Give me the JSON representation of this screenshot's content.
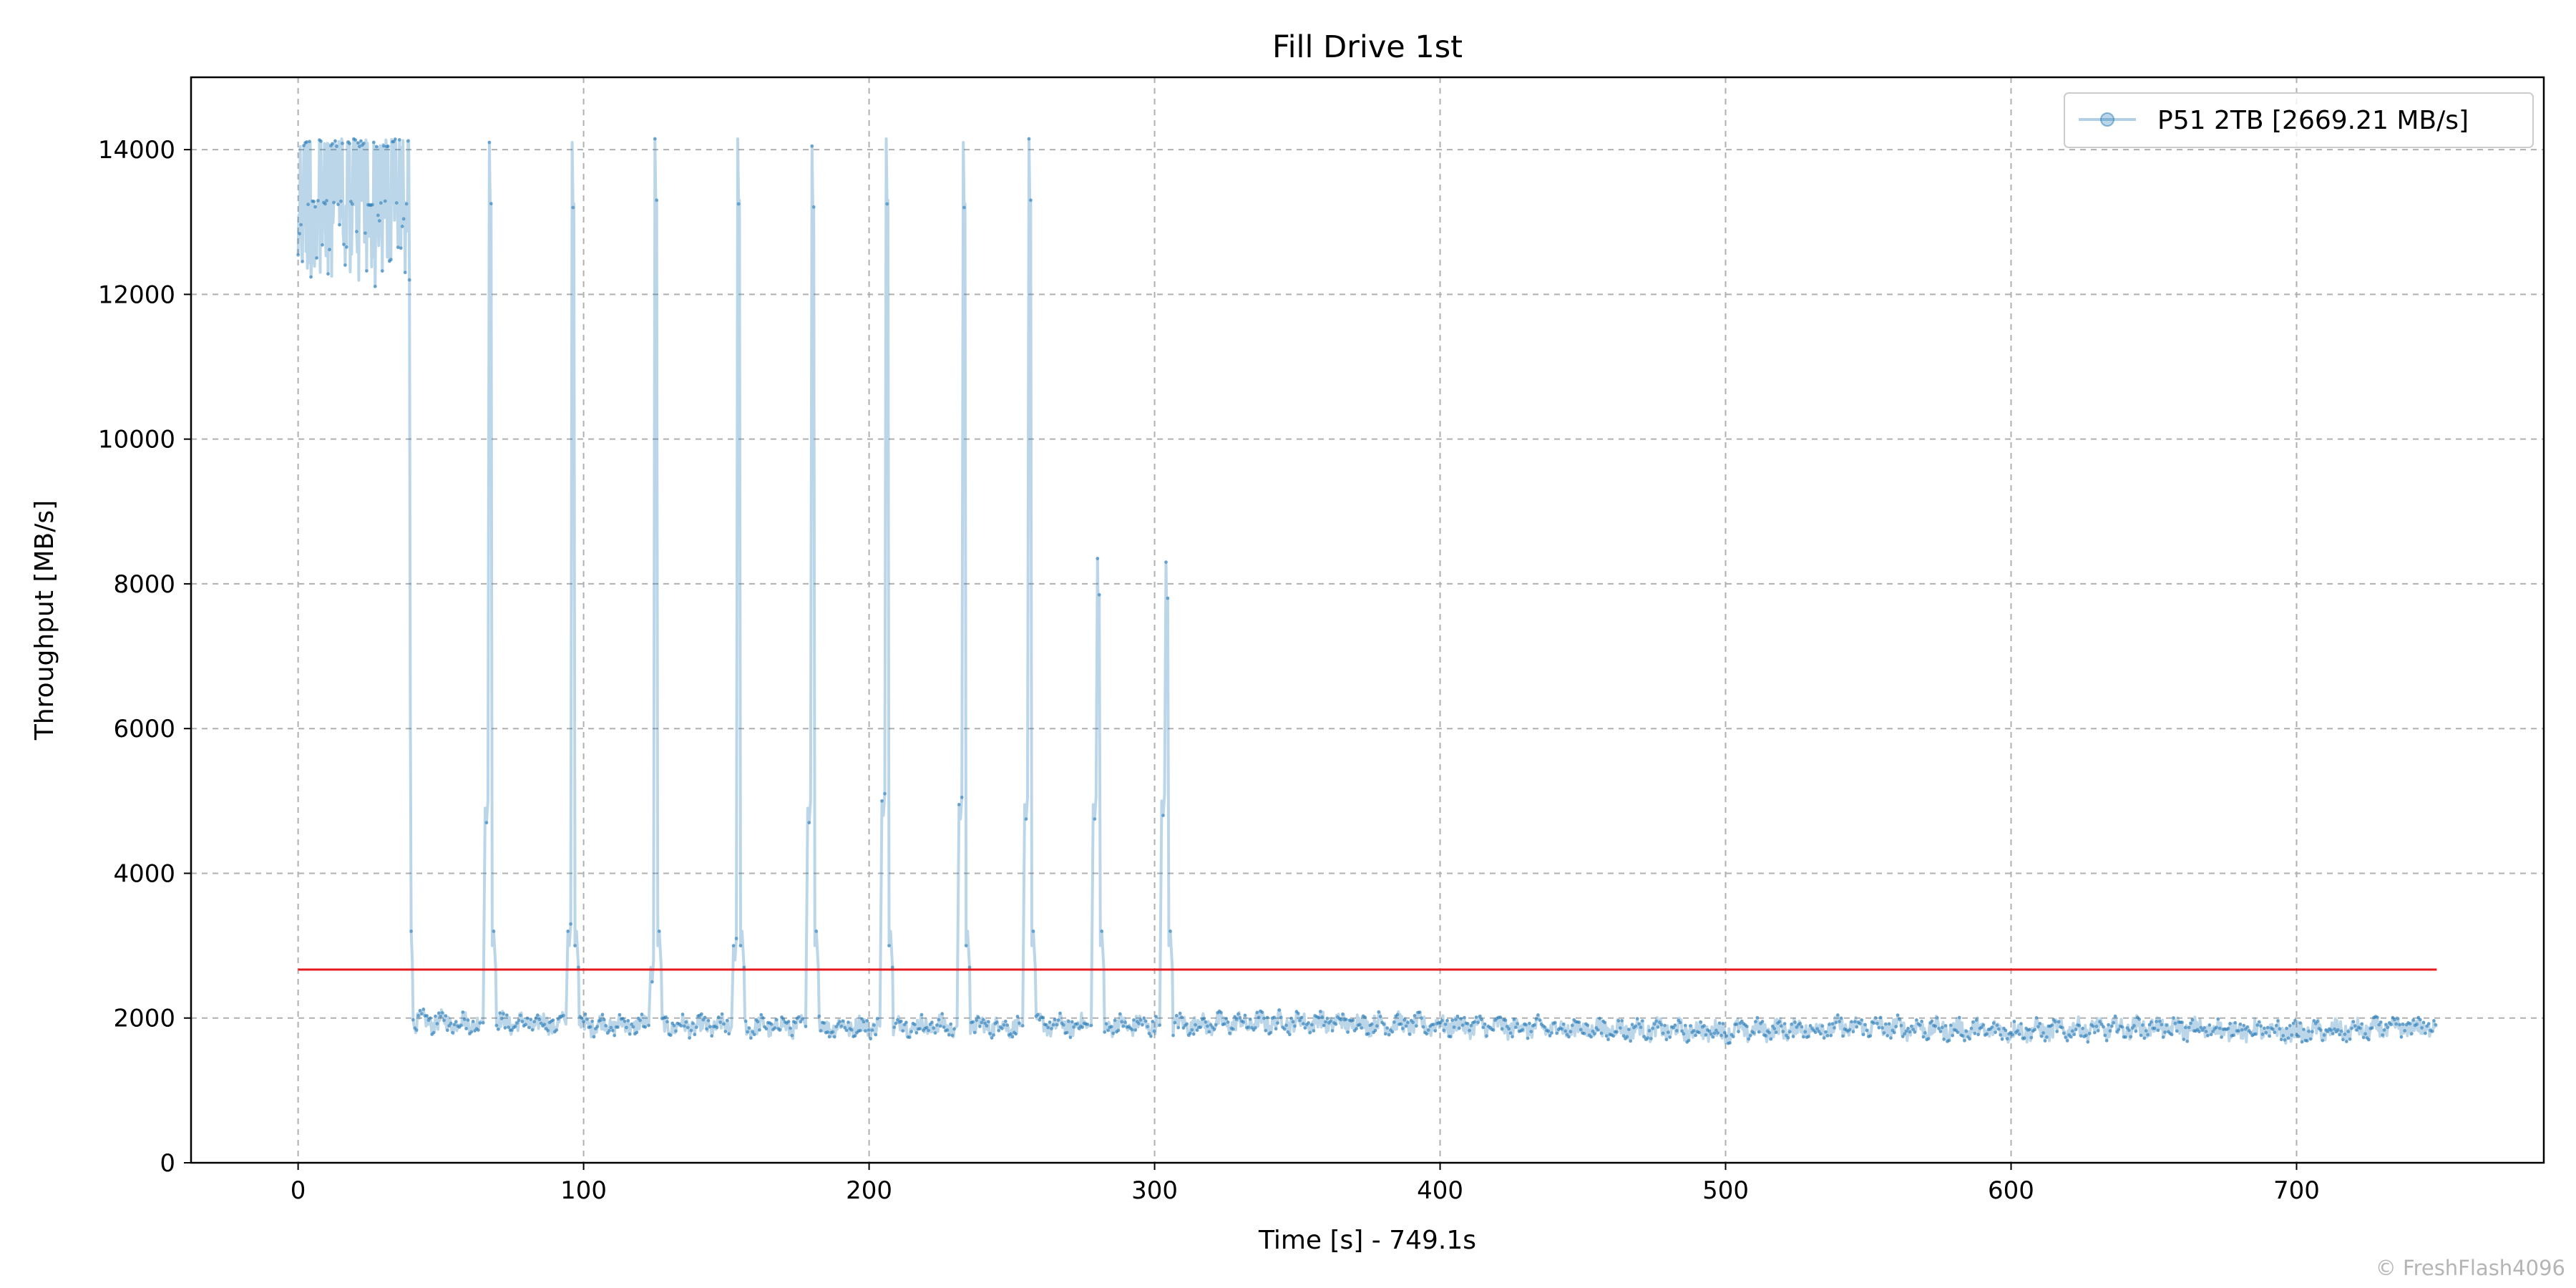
{
  "chart_data": {
    "type": "line",
    "title": "Fill Drive 1st",
    "xlabel": "Time [s] - 749.1s",
    "ylabel": "Throughput [MB/s]",
    "xlim": [
      -37.5,
      786.6
    ],
    "ylim": [
      0,
      15000
    ],
    "xticks": [
      0,
      100,
      200,
      300,
      400,
      500,
      600,
      700
    ],
    "yticks": [
      0,
      2000,
      4000,
      6000,
      8000,
      10000,
      12000,
      14000
    ],
    "grid": true,
    "legend_position": "top-right",
    "series": [
      {
        "name": "P51 2TB [2669.21 MB/s]",
        "color": "#1f77b4",
        "alpha": 0.3,
        "marker": "circle",
        "duration_s": 749.1,
        "phases": [
          {
            "x_start": 0,
            "x_end": 39,
            "low": 12300,
            "high": 14150,
            "band": [
              13200,
              13300
            ]
          }
        ],
        "spikes": [
          {
            "x": 67,
            "peak": 14100,
            "shoulder": 4900
          },
          {
            "x": 96,
            "peak": 14100,
            "shoulder": 3200
          },
          {
            "x": 125,
            "peak": 14150,
            "shoulder": 2700
          },
          {
            "x": 154,
            "peak": 14150,
            "shoulder": 3000
          },
          {
            "x": 180,
            "peak": 14050,
            "shoulder": 4900
          },
          {
            "x": 206,
            "peak": 14150,
            "shoulder": 5000
          },
          {
            "x": 233,
            "peak": 14100,
            "shoulder": 4950
          },
          {
            "x": 256,
            "peak": 14150,
            "shoulder": 4950
          },
          {
            "x": 280,
            "peak": 8350,
            "shoulder": 4950
          },
          {
            "x": 304,
            "peak": 8300,
            "shoulder": 5000
          }
        ],
        "steady_state": [
          {
            "x": 40,
            "y": 1950
          },
          {
            "x": 150,
            "y": 1880
          },
          {
            "x": 300,
            "y": 1900
          },
          {
            "x": 350,
            "y": 1950
          },
          {
            "x": 450,
            "y": 1850
          },
          {
            "x": 500,
            "y": 1820
          },
          {
            "x": 550,
            "y": 1880
          },
          {
            "x": 600,
            "y": 1820
          },
          {
            "x": 650,
            "y": 1870
          },
          {
            "x": 700,
            "y": 1800
          },
          {
            "x": 749,
            "y": 1880
          }
        ]
      }
    ],
    "hlines": [
      {
        "y": 2669.21,
        "x_start": 0,
        "x_end": 749.1,
        "color": "#e41a1c"
      }
    ]
  },
  "watermark": "© FreshFlash4096"
}
